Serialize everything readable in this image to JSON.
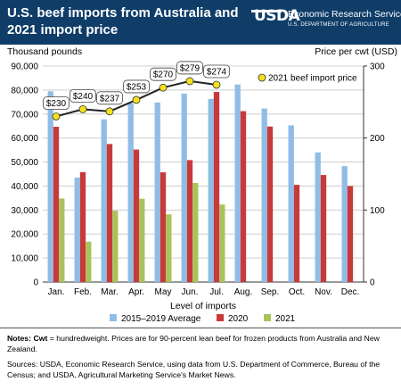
{
  "header": {
    "title": "U.S. beef imports from Australia and 2021 import price",
    "logo": "USDA",
    "agency": "Economic Research Service",
    "department": "U.S. DEPARTMENT OF AGRICULTURE"
  },
  "colors": {
    "header_bg": "#0f3d68",
    "avg": "#8fbde6",
    "y2020": "#c8393a",
    "y2021": "#a9c25a",
    "line": "#222222",
    "marker": "#f3e21b"
  },
  "chart_data": {
    "type": "bar",
    "xlabel": "Level of imports",
    "ylabel_left": "Thousand pounds",
    "ylabel_right": "Price per cwt (USD)",
    "ylim_left": [
      0,
      90000
    ],
    "yticks_left": [
      "0",
      "10,000",
      "20,000",
      "30,000",
      "40,000",
      "50,000",
      "60,000",
      "70,000",
      "80,000",
      "90,000"
    ],
    "ylim_right": [
      0,
      300
    ],
    "yticks_right": [
      "0",
      "100",
      "200",
      "300"
    ],
    "categories": [
      "Jan.",
      "Feb.",
      "Mar.",
      "Apr.",
      "May",
      "Jun.",
      "Jul.",
      "Aug.",
      "Sep.",
      "Oct.",
      "Nov.",
      "Dec."
    ],
    "series": [
      {
        "name": "2015–2019 Average",
        "color": "#8fbde6",
        "values": [
          79500,
          43500,
          67800,
          74500,
          74800,
          78500,
          76300,
          82300,
          72300,
          65300,
          54000,
          48300
        ]
      },
      {
        "name": "2020",
        "color": "#c8393a",
        "values": [
          64700,
          45800,
          57500,
          55200,
          45700,
          50800,
          79200,
          71200,
          64800,
          40500,
          44600,
          40000
        ]
      },
      {
        "name": "2021",
        "color": "#a9c25a",
        "values": [
          34800,
          16800,
          29700,
          34700,
          28200,
          41300,
          32300,
          null,
          null,
          null,
          null,
          null
        ]
      }
    ],
    "line_series": {
      "name": "2021 beef import price",
      "axis": "right",
      "values": [
        230,
        240,
        237,
        253,
        270,
        279,
        274
      ],
      "labels": [
        "$230",
        "$240",
        "$237",
        "$253",
        "$270",
        "$279",
        "$274"
      ]
    },
    "legend": "bottom",
    "grid": true
  },
  "notes": {
    "line1_bold": "Notes: Cwt",
    "line1_rest": " = hundredweight. Prices are for 90-percent lean beef for frozen products from Australia and New Zealand.",
    "sources": "Sources: USDA, Economic Research Service, using data from U.S. Department of Commerce, Bureau of the Census; and USDA, Agricultural Marketing Service's Market News."
  }
}
